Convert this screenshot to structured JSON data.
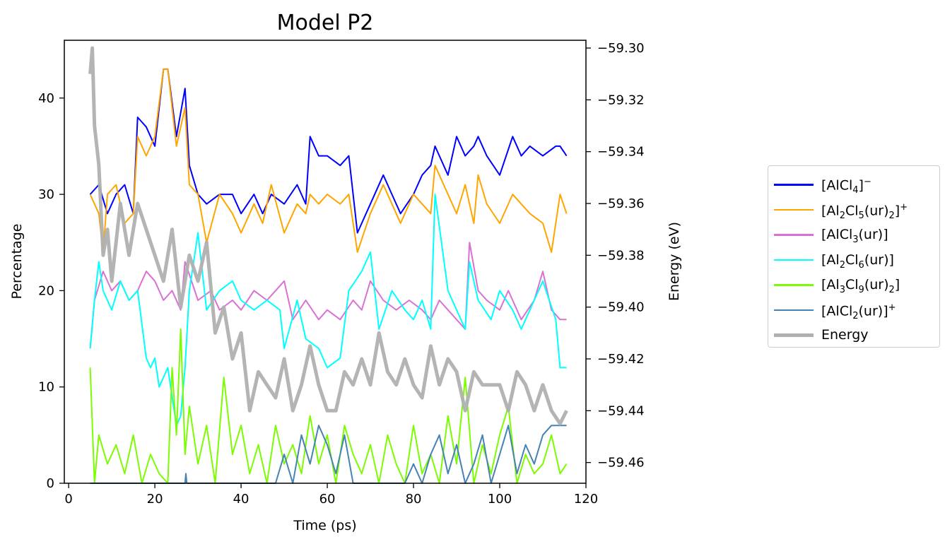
{
  "chart_data": {
    "type": "line",
    "title": "Model P2",
    "xlabel": "Time (ps)",
    "ylabel": "Percentage",
    "y2label": "Energy (eV)",
    "xlim": [
      -1,
      120
    ],
    "ylim": [
      0,
      46
    ],
    "y2lim": [
      -59.468,
      -59.297
    ],
    "xticks": [
      "0",
      "20",
      "40",
      "60",
      "80",
      "100",
      "120"
    ],
    "xtick_values": [
      0,
      20,
      40,
      60,
      80,
      100,
      120
    ],
    "yticks": [
      "0",
      "10",
      "20",
      "30",
      "40"
    ],
    "ytick_values": [
      0,
      10,
      20,
      30,
      40
    ],
    "y2ticks": [
      "−59.30",
      "−59.32",
      "−59.34",
      "−59.36",
      "−59.38",
      "−59.40",
      "−59.42",
      "−59.44",
      "−59.46"
    ],
    "y2tick_values": [
      -59.3,
      -59.32,
      -59.34,
      -59.36,
      -59.38,
      -59.4,
      -59.42,
      -59.44,
      -59.46
    ],
    "grid": false,
    "legend_position": "right",
    "series": [
      {
        "name": "[AlCl4]−",
        "color": "#0000ff",
        "axis": "left",
        "width": 2,
        "x": [
          5,
          7,
          9,
          11,
          13,
          15,
          16,
          18,
          20,
          22,
          23,
          25,
          27,
          28,
          30,
          32,
          35,
          38,
          40,
          43,
          45,
          47,
          50,
          53,
          55,
          56,
          58,
          60,
          63,
          65,
          67,
          70,
          73,
          75,
          77,
          80,
          82,
          84,
          85,
          88,
          90,
          92,
          94,
          95,
          97,
          100,
          103,
          105,
          107,
          110,
          113,
          114,
          115.5
        ],
        "values": [
          30,
          31,
          28,
          30,
          31,
          28,
          38,
          37,
          35,
          43,
          43,
          36,
          41,
          33,
          30,
          29,
          30,
          30,
          28,
          30,
          28,
          30,
          29,
          31,
          29,
          36,
          34,
          34,
          33,
          34,
          26,
          29,
          32,
          30,
          28,
          30,
          32,
          33,
          35,
          32,
          36,
          34,
          35,
          36,
          34,
          32,
          36,
          34,
          35,
          34,
          35,
          35,
          34
        ]
      },
      {
        "name": "[Al2Cl5(ur)2]+",
        "color": "#ffa500",
        "axis": "left",
        "width": 2,
        "x": [
          5,
          7,
          8,
          9,
          11,
          13,
          15,
          16,
          18,
          20,
          22,
          23,
          25,
          27,
          28,
          30,
          32,
          35,
          38,
          40,
          43,
          45,
          47,
          50,
          53,
          55,
          56,
          58,
          60,
          63,
          65,
          67,
          70,
          73,
          75,
          77,
          80,
          82,
          84,
          85,
          88,
          90,
          92,
          94,
          95,
          97,
          100,
          103,
          105,
          107,
          110,
          112,
          114,
          115.5
        ],
        "values": [
          30,
          28,
          24,
          30,
          31,
          27,
          28,
          36,
          34,
          36,
          43,
          43,
          35,
          39,
          31,
          30,
          25,
          30,
          28,
          26,
          29,
          27,
          31,
          26,
          29,
          28,
          30,
          29,
          30,
          29,
          30,
          24,
          28,
          31,
          29,
          27,
          30,
          29,
          28,
          33,
          30,
          28,
          31,
          27,
          32,
          29,
          27,
          30,
          29,
          28,
          27,
          24,
          30,
          28
        ]
      },
      {
        "name": "[AlCl3(ur)]",
        "color": "#da70d6",
        "axis": "left",
        "width": 2,
        "x": [
          5,
          6,
          8,
          10,
          12,
          14,
          16,
          18,
          20,
          22,
          24,
          26,
          27,
          30,
          33,
          35,
          38,
          40,
          43,
          46,
          50,
          52,
          55,
          58,
          60,
          63,
          66,
          68,
          70,
          73,
          76,
          79,
          82,
          84,
          86,
          88,
          90,
          92,
          93,
          95,
          97,
          100,
          102,
          105,
          108,
          110,
          112,
          114,
          115.5
        ],
        "values": [
          14,
          19,
          22,
          20,
          21,
          19,
          20,
          22,
          21,
          19,
          20,
          18,
          23,
          19,
          20,
          18,
          19,
          18,
          20,
          19,
          21,
          17,
          19,
          17,
          18,
          17,
          19,
          18,
          21,
          19,
          18,
          19,
          18,
          17,
          19,
          18,
          17,
          16,
          25,
          20,
          19,
          18,
          20,
          17,
          19,
          22,
          18,
          17,
          17
        ]
      },
      {
        "name": "[Al2Cl6(ur)]",
        "color": "#00ffff",
        "axis": "left",
        "width": 2,
        "x": [
          5,
          6,
          7,
          8,
          10,
          12,
          14,
          16,
          18,
          19,
          20,
          21,
          23,
          25,
          26,
          27,
          28,
          30,
          32,
          35,
          38,
          40,
          43,
          46,
          49,
          50,
          53,
          55,
          58,
          60,
          63,
          65,
          68,
          70,
          72,
          75,
          78,
          80,
          82,
          84,
          85,
          88,
          90,
          92,
          93,
          95,
          98,
          100,
          103,
          105,
          108,
          110,
          113,
          114,
          115.5
        ],
        "values": [
          14,
          19,
          23,
          20,
          18,
          21,
          19,
          20,
          13,
          12,
          13,
          10,
          12,
          6,
          7,
          12,
          20,
          26,
          18,
          20,
          21,
          19,
          18,
          19,
          18,
          14,
          19,
          15,
          14,
          12,
          13,
          20,
          22,
          24,
          16,
          20,
          18,
          17,
          19,
          16,
          30,
          20,
          18,
          16,
          23,
          19,
          17,
          20,
          18,
          16,
          19,
          21,
          17,
          12,
          12
        ]
      },
      {
        "name": "[Al3Cl9(ur)2]",
        "color": "#7cfc00",
        "axis": "left",
        "width": 2,
        "x": [
          5,
          6,
          7,
          9,
          11,
          13,
          15,
          17,
          19,
          21,
          23,
          24,
          25,
          26,
          27,
          28,
          30,
          32,
          34,
          36,
          38,
          40,
          42,
          44,
          46,
          48,
          50,
          52,
          54,
          56,
          58,
          60,
          62,
          64,
          66,
          68,
          70,
          72,
          74,
          76,
          78,
          80,
          82,
          84,
          86,
          88,
          90,
          92,
          94,
          96,
          98,
          100,
          102,
          104,
          106,
          108,
          110,
          112,
          114,
          115.5
        ],
        "values": [
          12,
          0,
          5,
          2,
          4,
          1,
          5,
          0,
          3,
          1,
          0,
          12,
          5,
          16,
          3,
          8,
          2,
          6,
          0,
          11,
          3,
          6,
          1,
          4,
          0,
          6,
          2,
          4,
          1,
          7,
          2,
          5,
          0,
          6,
          3,
          1,
          4,
          0,
          5,
          2,
          0,
          6,
          1,
          3,
          0,
          7,
          2,
          11,
          0,
          4,
          1,
          5,
          8,
          0,
          3,
          1,
          2,
          5,
          1,
          2
        ]
      },
      {
        "name": "[AlCl2(ur)]+",
        "color": "#4682b4",
        "axis": "left",
        "width": 2,
        "x": [
          5,
          27,
          27.2,
          27.4,
          48,
          50,
          52,
          54,
          56,
          58,
          60,
          62,
          64,
          66,
          68,
          78,
          80,
          82,
          84,
          86,
          88,
          90,
          92,
          94,
          96,
          98,
          100,
          102,
          104,
          106,
          108,
          110,
          112,
          114,
          115.5
        ],
        "values": [
          0,
          0,
          1,
          0,
          0,
          3,
          0,
          5,
          2,
          6,
          4,
          1,
          5,
          0,
          0,
          0,
          2,
          0,
          3,
          5,
          1,
          4,
          0,
          2,
          5,
          0,
          3,
          6,
          1,
          4,
          2,
          5,
          6,
          6,
          6
        ]
      },
      {
        "name": "Energy",
        "color": "#b0b0b0",
        "axis": "right",
        "width": 5,
        "x": [
          5,
          5.5,
          6,
          7,
          8,
          9,
          10,
          12,
          14,
          16,
          18,
          20,
          22,
          24,
          26,
          28,
          30,
          32,
          34,
          36,
          38,
          40,
          42,
          44,
          46,
          48,
          50,
          52,
          54,
          56,
          58,
          60,
          62,
          64,
          66,
          68,
          70,
          72,
          74,
          76,
          78,
          80,
          82,
          84,
          86,
          88,
          90,
          92,
          94,
          96,
          98,
          100,
          102,
          104,
          106,
          108,
          110,
          112,
          114,
          115.5
        ],
        "values": [
          -59.31,
          -59.3,
          -59.33,
          -59.345,
          -59.38,
          -59.37,
          -59.39,
          -59.36,
          -59.38,
          -59.36,
          -59.37,
          -59.38,
          -59.39,
          -59.37,
          -59.4,
          -59.38,
          -59.39,
          -59.375,
          -59.41,
          -59.4,
          -59.42,
          -59.41,
          -59.44,
          -59.425,
          -59.43,
          -59.435,
          -59.42,
          -59.44,
          -59.43,
          -59.415,
          -59.43,
          -59.44,
          -59.44,
          -59.425,
          -59.43,
          -59.42,
          -59.43,
          -59.41,
          -59.425,
          -59.43,
          -59.42,
          -59.43,
          -59.435,
          -59.415,
          -59.43,
          -59.42,
          -59.425,
          -59.44,
          -59.425,
          -59.43,
          -59.43,
          -59.43,
          -59.44,
          -59.425,
          -59.43,
          -59.44,
          -59.43,
          -59.44,
          -59.445,
          -59.44
        ]
      }
    ]
  },
  "legend": {
    "items": [
      {
        "base": "[AlCl",
        "sub1": "4",
        "mid": "]",
        "sub2": "",
        "tail": "",
        "sup": "−",
        "color": "#0000ff"
      },
      {
        "base": "[Al",
        "sub1": "2",
        "mid": "Cl",
        "sub2": "5",
        "tail": "(ur)",
        "sub3": "2",
        "end": "]",
        "sup": "+",
        "color": "#ffa500"
      },
      {
        "base": "[AlCl",
        "sub1": "3",
        "mid": "(ur)]",
        "sub2": "",
        "tail": "",
        "sup": "",
        "color": "#da70d6"
      },
      {
        "base": "[Al",
        "sub1": "2",
        "mid": "Cl",
        "sub2": "6",
        "tail": "(ur)]",
        "sup": "",
        "color": "#00ffff"
      },
      {
        "base": "[Al",
        "sub1": "3",
        "mid": "Cl",
        "sub2": "9",
        "tail": "(ur)",
        "sub3": "2",
        "end": "]",
        "sup": "",
        "color": "#7cfc00"
      },
      {
        "base": "[AlCl",
        "sub1": "2",
        "mid": "(ur)]",
        "sub2": "",
        "tail": "",
        "sup": "+",
        "color": "#4682b4"
      },
      {
        "base": "Energy",
        "sub1": "",
        "mid": "",
        "sub2": "",
        "tail": "",
        "sup": "",
        "color": "#b0b0b0"
      }
    ]
  }
}
